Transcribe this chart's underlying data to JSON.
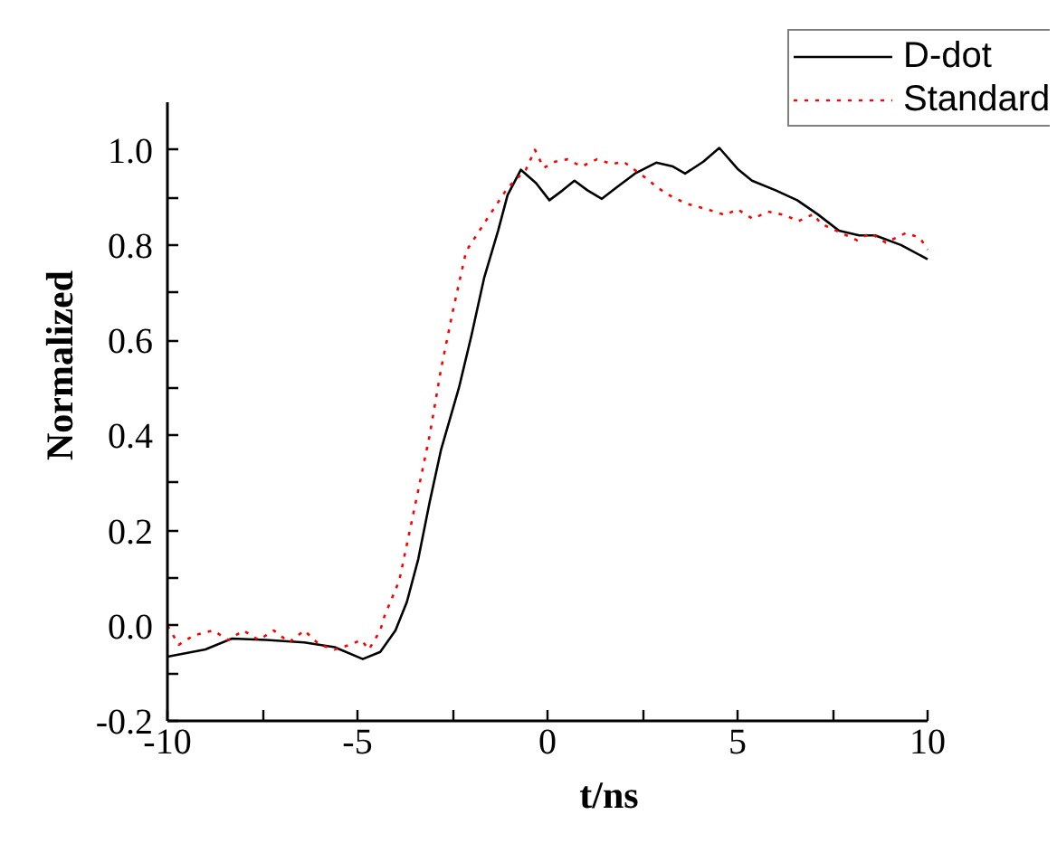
{
  "chart_data": {
    "type": "line",
    "xlabel": "t/ns",
    "ylabel": "Normalized",
    "xlim": [
      -10,
      10
    ],
    "ylim": [
      -0.2,
      1.1
    ],
    "xticks": [
      -10,
      {
        "value": -7.5,
        "label": null
      },
      -5,
      {
        "value": -2.5,
        "label": null
      },
      0,
      {
        "value": 2.5,
        "label": null
      },
      5,
      {
        "value": 7.5,
        "label": null
      },
      10
    ],
    "yticks": [
      {
        "value": -0.2,
        "label": "-0.2"
      },
      {
        "value": -0.1,
        "label": null
      },
      {
        "value": 0.0,
        "label": "0.0"
      },
      {
        "value": 0.1,
        "label": null
      },
      {
        "value": 0.2,
        "label": "0.2"
      },
      {
        "value": 0.3,
        "label": null
      },
      {
        "value": 0.4,
        "label": "0.4"
      },
      {
        "value": 0.5,
        "label": null
      },
      {
        "value": 0.6,
        "label": "0.6"
      },
      {
        "value": 0.7,
        "label": null
      },
      {
        "value": 0.8,
        "label": "0.8"
      },
      {
        "value": 0.9,
        "label": null
      },
      {
        "value": 1.0,
        "label": "1.0"
      }
    ],
    "grid": false,
    "legend": "top right",
    "series": [
      {
        "name": "D-dot",
        "color": "#000000",
        "line_style": "solid",
        "x": [
          -10,
          -9,
          -8.3,
          -7.4,
          -6.4,
          -5.6,
          -4.86,
          -4.4,
          -4.0,
          -3.7,
          -3.4,
          -3.1,
          -2.8,
          -2.33,
          -2.0,
          -1.67,
          -1.3,
          -1.05,
          -0.7,
          -0.3,
          0.05,
          0.4,
          0.71,
          1.05,
          1.43,
          1.8,
          2.3,
          2.86,
          3.3,
          3.62,
          4.1,
          4.52,
          5.0,
          5.38,
          6.0,
          6.57,
          7.1,
          7.67,
          8.2,
          8.62,
          9.3,
          10
        ],
        "values": [
          -0.065,
          -0.05,
          -0.027,
          -0.03,
          -0.035,
          -0.045,
          -0.07,
          -0.055,
          -0.01,
          0.05,
          0.14,
          0.26,
          0.37,
          0.5,
          0.61,
          0.73,
          0.83,
          0.905,
          0.958,
          0.93,
          0.894,
          0.915,
          0.935,
          0.915,
          0.897,
          0.92,
          0.95,
          0.973,
          0.965,
          0.95,
          0.975,
          1.004,
          0.96,
          0.935,
          0.915,
          0.894,
          0.865,
          0.83,
          0.82,
          0.82,
          0.8,
          0.77
        ]
      },
      {
        "name": "Standard",
        "color": "#ff0000",
        "line_style": "dotted",
        "x": [
          -10,
          -9.7,
          -9.3,
          -8.8,
          -8.4,
          -8.0,
          -7.6,
          -7.2,
          -6.8,
          -6.4,
          -6.0,
          -5.6,
          -5.2,
          -4.9,
          -4.7,
          -4.4,
          -4.29,
          -3.9,
          -3.57,
          -3.1,
          -2.8,
          -2.48,
          -2.14,
          -1.67,
          -1.05,
          -0.57,
          -0.33,
          -0.1,
          0.2,
          0.52,
          0.9,
          1.3,
          1.7,
          2.0,
          2.29,
          2.6,
          2.9,
          3.3,
          3.7,
          4.2,
          4.67,
          5.0,
          5.4,
          5.8,
          6.24,
          6.6,
          7.0,
          7.19,
          7.6,
          8.14,
          8.5,
          8.9,
          9.43,
          9.8,
          10
        ],
        "values": [
          0.0,
          -0.04,
          -0.02,
          -0.01,
          -0.03,
          -0.01,
          -0.03,
          -0.01,
          -0.035,
          -0.01,
          -0.04,
          -0.05,
          -0.04,
          -0.03,
          -0.05,
          -0.01,
          0.02,
          0.095,
          0.22,
          0.4,
          0.54,
          0.665,
          0.787,
          0.845,
          0.92,
          0.958,
          1.0,
          0.962,
          0.975,
          0.98,
          0.965,
          0.98,
          0.97,
          0.975,
          0.958,
          0.94,
          0.92,
          0.9,
          0.886,
          0.875,
          0.863,
          0.875,
          0.855,
          0.87,
          0.863,
          0.85,
          0.865,
          0.845,
          0.83,
          0.81,
          0.825,
          0.805,
          0.825,
          0.815,
          0.79
        ]
      }
    ]
  }
}
